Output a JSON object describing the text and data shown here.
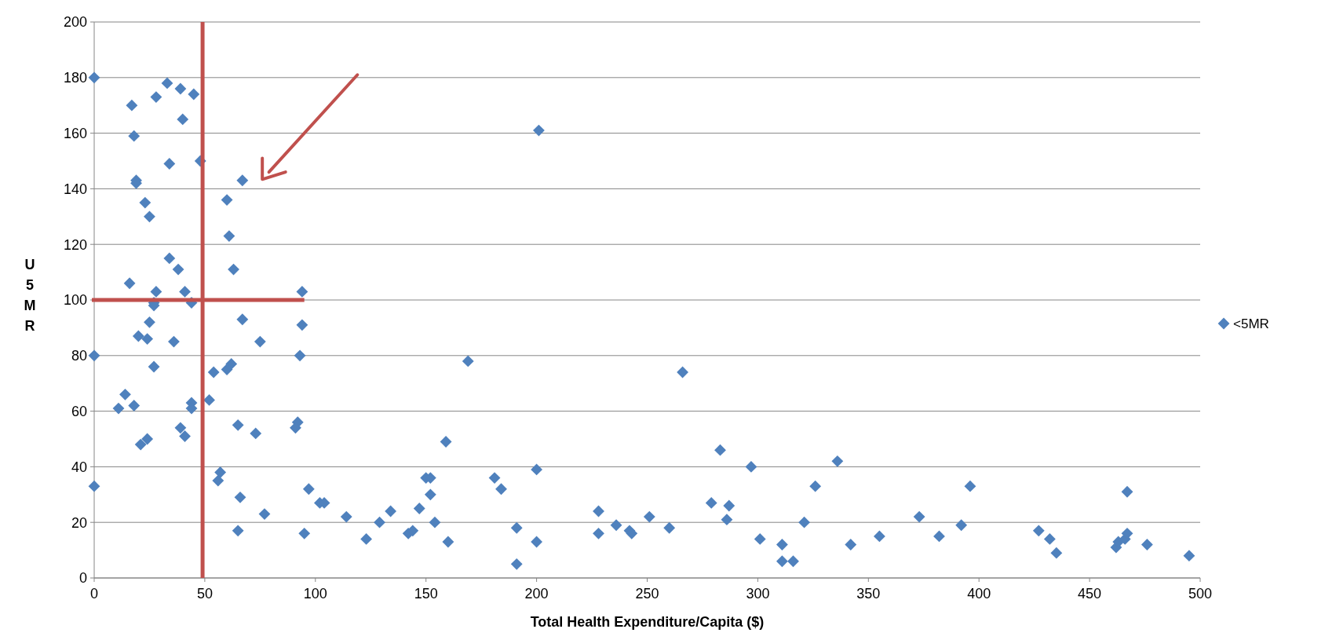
{
  "chart_data": {
    "type": "scatter",
    "xlabel": "Total Health Expenditure/Capita ($)",
    "ylabel": "U5MR",
    "xlim": [
      0,
      500
    ],
    "xticks": [
      0,
      50,
      100,
      150,
      200,
      250,
      300,
      350,
      400,
      450,
      500
    ],
    "ylim": [
      0,
      200
    ],
    "yticks": [
      0,
      20,
      40,
      60,
      80,
      100,
      120,
      140,
      160,
      180,
      200
    ],
    "grid": "y",
    "legend": "right",
    "marker": "diamond",
    "ref_lines": [
      {
        "axis": "x",
        "value": 49,
        "label": null,
        "color": "#c0504d"
      },
      {
        "axis": "y",
        "value": 100,
        "label": null,
        "color": "#c0504d"
      }
    ],
    "series": [
      {
        "name": "<5MR",
        "color": "#4f81bd",
        "x": [
          0,
          0,
          0,
          17,
          18,
          19,
          19,
          23,
          25,
          16,
          28,
          33,
          34,
          39,
          40,
          45,
          48,
          34,
          38,
          41,
          28,
          27,
          27,
          44,
          25,
          20,
          24,
          36,
          27,
          14,
          11,
          18,
          21,
          24,
          39,
          41,
          44,
          44,
          60,
          61,
          67,
          63,
          67,
          75,
          62,
          60,
          54,
          52,
          65,
          73,
          57,
          56,
          66,
          65,
          77,
          94,
          94,
          93,
          92,
          91,
          97,
          95,
          102,
          104,
          114,
          123,
          129,
          134,
          142,
          144,
          147,
          150,
          152,
          152,
          154,
          160,
          159,
          169,
          181,
          184,
          191,
          191,
          200,
          200,
          201,
          228,
          228,
          236,
          242,
          243,
          251,
          260,
          266,
          279,
          283,
          286,
          287,
          297,
          301,
          311,
          311,
          316,
          321,
          326,
          336,
          342,
          355,
          373,
          382,
          392,
          396,
          427,
          432,
          435,
          462,
          463,
          466,
          467,
          467,
          476,
          495
        ],
        "values": [
          180,
          80,
          33,
          170,
          159,
          143,
          142,
          135,
          130,
          106,
          173,
          178,
          149,
          176,
          165,
          174,
          150,
          115,
          111,
          103,
          103,
          99,
          98,
          99,
          92,
          87,
          86,
          85,
          76,
          66,
          61,
          62,
          48,
          50,
          54,
          51,
          63,
          61,
          136,
          123,
          143,
          111,
          93,
          85,
          77,
          75,
          74,
          64,
          55,
          52,
          38,
          35,
          29,
          17,
          23,
          103,
          91,
          80,
          56,
          54,
          32,
          16,
          27,
          27,
          22,
          14,
          20,
          24,
          16,
          17,
          25,
          36,
          36,
          30,
          20,
          13,
          49,
          78,
          36,
          32,
          18,
          5,
          39,
          13,
          161,
          24,
          16,
          19,
          17,
          16,
          22,
          18,
          74,
          27,
          46,
          21,
          26,
          40,
          14,
          12,
          6,
          6,
          20,
          33,
          42,
          12,
          15,
          22,
          15,
          19,
          33,
          17,
          14,
          9,
          11,
          13,
          14,
          16,
          31,
          12,
          8
        ]
      }
    ]
  }
}
